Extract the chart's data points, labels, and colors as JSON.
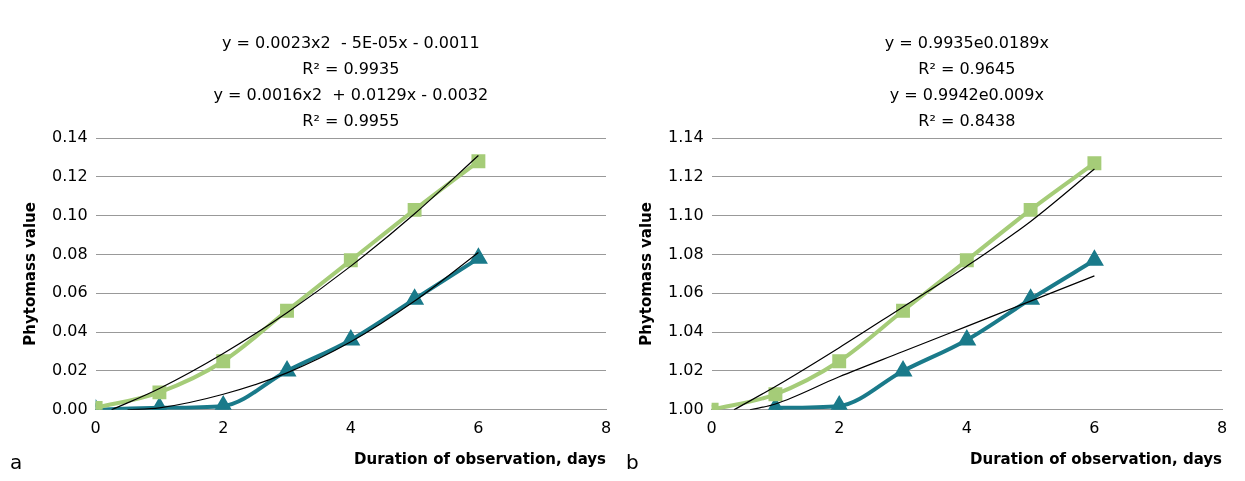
{
  "chart_data": [
    {
      "type": "line",
      "xlabel": "Duration of observation, days",
      "ylabel": "Phytomass value",
      "xlim": [
        0,
        8
      ],
      "xticks": [
        0,
        2,
        4,
        6,
        8
      ],
      "ylim": [
        0,
        0.14
      ],
      "yticks": [
        {
          "value": 0,
          "label": "0.00"
        },
        {
          "value": 0.02,
          "label": "0.02"
        },
        {
          "value": 0.04,
          "label": "0.04"
        },
        {
          "value": 0.06,
          "label": "0.06"
        },
        {
          "value": 0.08,
          "label": "0.08"
        },
        {
          "value": 0.1,
          "label": "0.10"
        },
        {
          "value": 0.12,
          "label": "0.12"
        },
        {
          "value": 0.14,
          "label": "0.14"
        }
      ],
      "grid": "y",
      "legend": false,
      "annotations": [
        "y = 0.0023x2  - 5E-05x - 0.0011",
        "R² = 0.9935",
        "y = 0.0016x2  + 0.0129x - 0.0032",
        "R² = 0.9955",
        "a"
      ],
      "series": [
        {
          "color": "#000000",
          "marker": "none",
          "x": [
            0.25,
            1,
            2,
            3,
            4,
            5,
            6
          ],
          "values": [
            0,
            0.011,
            0.029,
            0.05,
            0.074,
            0.101,
            0.131
          ]
        },
        {
          "color": "#000000",
          "marker": "none",
          "x": [
            0.5,
            1,
            2,
            3,
            4,
            5,
            6
          ],
          "values": [
            0,
            0.001,
            0.008,
            0.019,
            0.035,
            0.056,
            0.081
          ]
        },
        {
          "color": "#a5cc78",
          "marker": "square",
          "x": [
            0,
            1,
            2,
            3,
            4,
            5,
            6
          ],
          "values": [
            0.001,
            0.009,
            0.025,
            0.051,
            0.077,
            0.103,
            0.128
          ]
        },
        {
          "color": "#1a7a8a",
          "marker": "triangle",
          "x": [
            0,
            1,
            2,
            3,
            4,
            5,
            6
          ],
          "values": [
            0,
            0.001,
            0.002,
            0.02,
            0.036,
            0.057,
            0.078
          ]
        }
      ]
    },
    {
      "type": "line",
      "xlabel": "Duration of observation, days",
      "ylabel": "Phytomass value",
      "xlim": [
        0,
        8
      ],
      "xticks": [
        0,
        2,
        4,
        6,
        8
      ],
      "ylim": [
        1,
        1.14
      ],
      "yticks": [
        {
          "value": 1,
          "label": "1.00"
        },
        {
          "value": 1.02,
          "label": "1.02"
        },
        {
          "value": 1.04,
          "label": "1.04"
        },
        {
          "value": 1.06,
          "label": "1.06"
        },
        {
          "value": 1.08,
          "label": "1.08"
        },
        {
          "value": 1.1,
          "label": "1.10"
        },
        {
          "value": 1.12,
          "label": "1.12"
        },
        {
          "value": 1.14,
          "label": "1.14"
        }
      ],
      "grid": "y",
      "legend": false,
      "annotations": [
        "y = 0.9935e0.0189x",
        "R² = 0.9645",
        "y = 0.9942e0.009x",
        "R² = 0.8438",
        "b"
      ],
      "series": [
        {
          "color": "#000000",
          "marker": "none",
          "x": [
            0.35,
            1,
            2,
            3,
            4,
            5,
            6
          ],
          "values": [
            1,
            1.012,
            1.032,
            1.053,
            1.074,
            1.097,
            1.124
          ]
        },
        {
          "color": "#000000",
          "marker": "none",
          "x": [
            0.6,
            1,
            2,
            3,
            4,
            5,
            6
          ],
          "values": [
            1,
            1.003,
            1.017,
            1.03,
            1.043,
            1.056,
            1.069
          ]
        },
        {
          "color": "#a5cc78",
          "marker": "square",
          "x": [
            0,
            1,
            2,
            3,
            4,
            5,
            6
          ],
          "values": [
            1,
            1.008,
            1.025,
            1.051,
            1.077,
            1.103,
            1.127
          ]
        },
        {
          "color": "#1a7a8a",
          "marker": "triangle",
          "x": [
            1,
            2,
            3,
            4,
            5,
            6
          ],
          "values": [
            1.001,
            1.002,
            1.02,
            1.036,
            1.057,
            1.077
          ]
        }
      ]
    }
  ]
}
